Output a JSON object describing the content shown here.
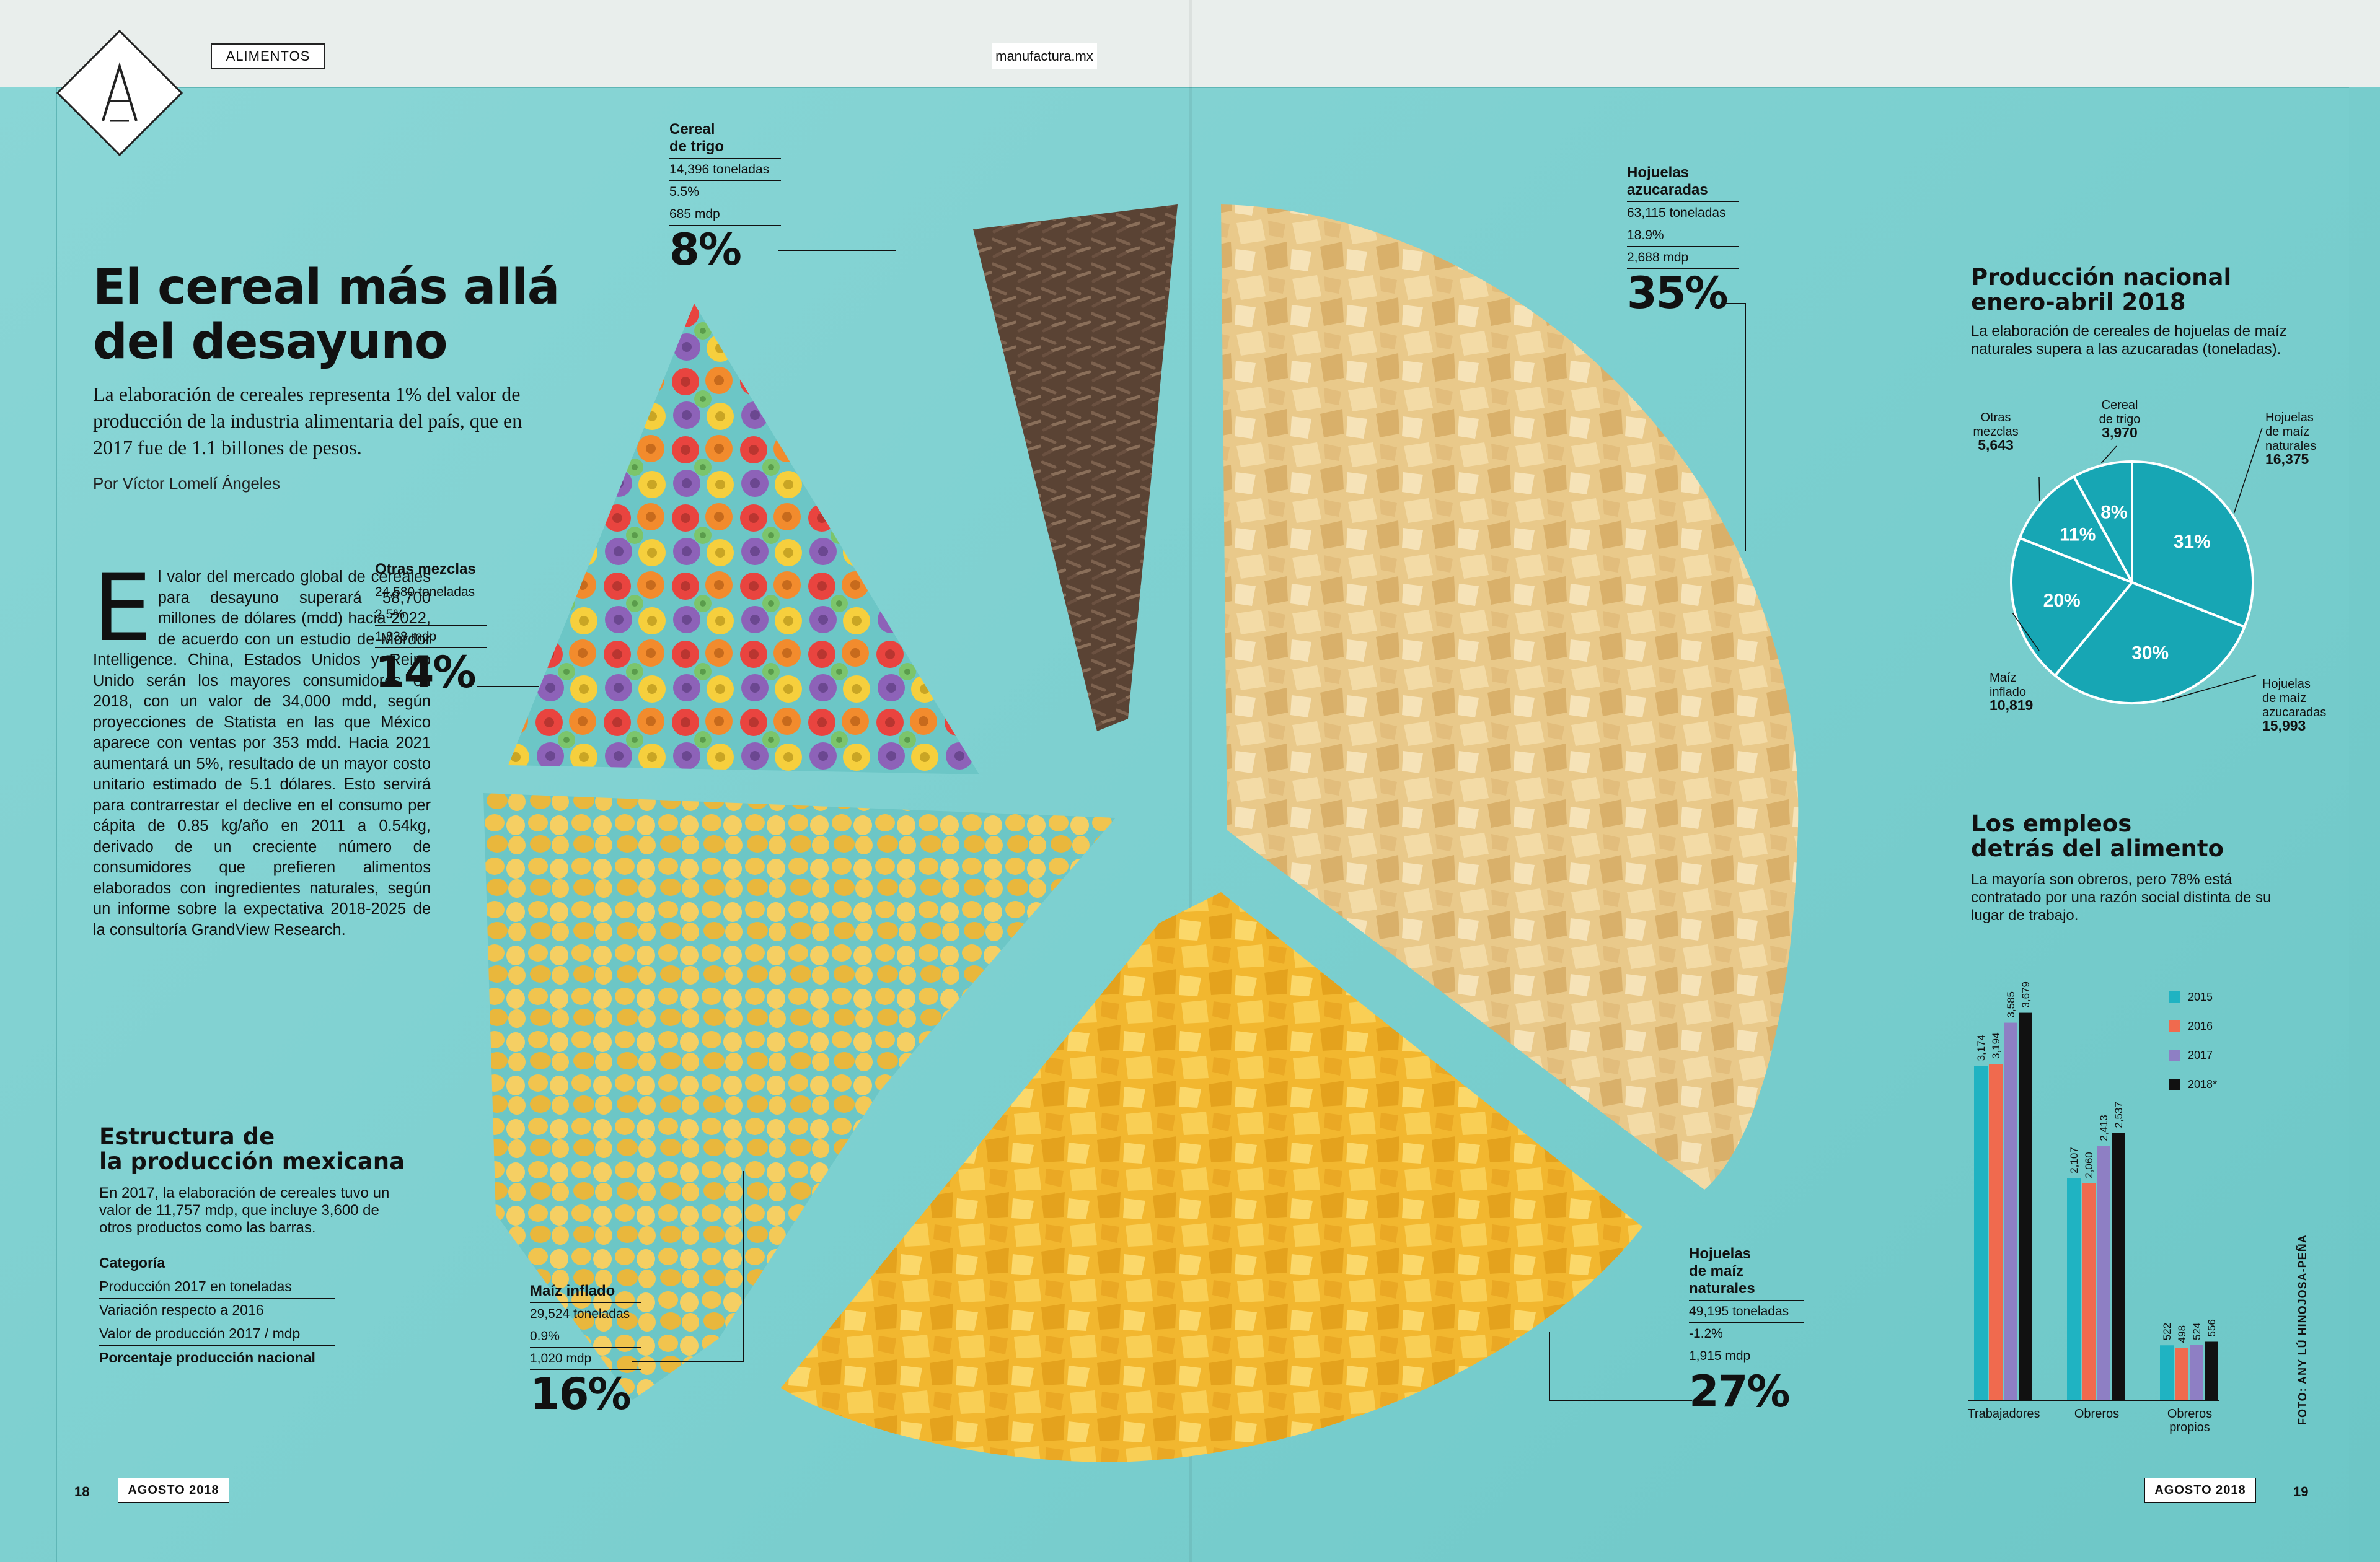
{
  "header": {
    "section": "ALIMENTOS",
    "site": "manufactura.mx"
  },
  "article": {
    "title_line1": "El cereal más allá",
    "title_line2": "del desayuno",
    "deck": "La elaboración de cereales representa 1% del valor de producción de la industria alimentaria del país, que en 2017 fue de 1.1 billones de pesos.",
    "byline": "Por Víctor Lomelí Ángeles",
    "dropcap": "E",
    "body": "l valor del mercado global de cereales para desayuno superará 58,700 millones de dólares (mdd) hacia 2022, de acuerdo con un estudio de Mordor Intelligence. China, Estados Unidos y Reino Unido serán los mayores consumidores en 2018, con un valor de 34,000 mdd, según proyecciones de Statista en las que México aparece con ventas por 353 mdd. Hacia 2021 aumentará un 5%, resultado de un mayor costo unitario estimado de 5.1 dólares. Esto servirá para contrarrestar el declive en el consumo per cápita de 0.85 kg/año en 2011 a 0.54kg, derivado de un creciente número de consumidores que prefieren alimentos elaborados con ingredientes naturales, según un informe sobre la expectativa 2018-2025 de la consultoría GrandView Research."
  },
  "structure": {
    "title_line1": "Estructura de",
    "title_line2": "la producción mexicana",
    "deck": "En 2017, la elaboración de cereales tuvo un valor de 11,757 mdp, que incluye 3,600 de otros productos como las barras.",
    "legend_heading": "Categoría",
    "legend_rows": [
      "Producción 2017 en toneladas",
      "Variación respecto a 2016",
      "Valor de producción 2017 / mdp",
      "Porcentaje producción nacional"
    ]
  },
  "callouts": {
    "trigo": {
      "title1": "Cereal",
      "title2": "de trigo",
      "tons": "14,396 toneladas",
      "var": "5.5%",
      "value": "685 mdp",
      "pct": "8%"
    },
    "azucaradas": {
      "title1": "Hojuelas",
      "title2": "azucaradas",
      "tons": "63,115 toneladas",
      "var": "18.9%",
      "value": "2,688 mdp",
      "pct": "35%"
    },
    "mezclas": {
      "title1": "Otras mezclas",
      "tons": "24,580 toneladas",
      "var": "2.5%",
      "value": "1,838 mdp",
      "pct": "14%"
    },
    "inflado": {
      "title1": "Maíz inflado",
      "tons": "29,524 toneladas",
      "var": "0.9%",
      "value": "1,020 mdp",
      "pct": "16%"
    },
    "naturales": {
      "title1": "Hojuelas",
      "title2": "de maíz",
      "title3": "naturales",
      "tons": "49,195 toneladas",
      "var": "-1.2%",
      "value": "1,915 mdp",
      "pct": "27%"
    }
  },
  "production": {
    "title_line1": "Producción nacional",
    "title_line2": "enero-abril 2018",
    "deck": "La elaboración de cereales de hojuelas de maíz naturales supera a las azucaradas (toneladas).",
    "color": "#17a6b4",
    "chart_data": {
      "type": "pie",
      "slices": [
        {
          "name": "Hojuelas de maíz naturales",
          "pct": 31,
          "value": 16375,
          "label": "31%",
          "annot": [
            "Hojuelas",
            "de maíz",
            "naturales",
            "16,375"
          ]
        },
        {
          "name": "Hojuelas de maíz azucaradas",
          "pct": 30,
          "value": 15993,
          "label": "30%",
          "annot": [
            "Hojuelas",
            "de maíz",
            "azucaradas",
            "15,993"
          ]
        },
        {
          "name": "Maíz inflado",
          "pct": 20,
          "value": 10819,
          "label": "20%",
          "annot": [
            "Maíz",
            "inflado",
            "10,819"
          ]
        },
        {
          "name": "Otras mezclas",
          "pct": 11,
          "value": 5643,
          "label": "11%",
          "annot": [
            "Otras",
            "mezclas",
            "5,643"
          ]
        },
        {
          "name": "Cereal de trigo",
          "pct": 8,
          "value": 3970,
          "label": "8%",
          "annot": [
            "Cereal",
            "de trigo",
            "3,970"
          ]
        }
      ]
    }
  },
  "employment": {
    "title_line1": "Los empleos",
    "title_line2": "detrás del alimento",
    "deck": "La mayoría son obreros, pero 78% está contratado por una razón social distinta de su lugar de trabajo.",
    "chart_data": {
      "type": "bar",
      "categories": [
        "Trabajadores",
        "Obreros",
        "Obreros propios"
      ],
      "category_lines": [
        [
          "Trabajadores"
        ],
        [
          "Obreros"
        ],
        [
          "Obreros",
          "propios"
        ]
      ],
      "series": [
        {
          "name": "2015",
          "color": "#1fb3c2",
          "values": [
            3174,
            2107,
            522
          ],
          "labels": [
            "3,174",
            "2,107",
            "522"
          ]
        },
        {
          "name": "2016",
          "color": "#f06a4e",
          "values": [
            3194,
            2060,
            498
          ],
          "labels": [
            "3,194",
            "2,060",
            "498"
          ]
        },
        {
          "name": "2017",
          "color": "#8e7fc4",
          "values": [
            3585,
            2413,
            524
          ],
          "labels": [
            "3,585",
            "2,413",
            "524"
          ]
        },
        {
          "name": "2018*",
          "color": "#111111",
          "values": [
            3679,
            2537,
            556
          ],
          "labels": [
            "3,679",
            "2,537",
            "556"
          ]
        }
      ],
      "ylim": [
        0,
        4000
      ],
      "legend": "top-right"
    }
  },
  "footer": {
    "left_page": "18",
    "left_date": "AGOSTO 2018",
    "right_date": "AGOSTO 2018",
    "right_page": "19",
    "credit": "FOTO: ANY LÚ HINOJOSA-PEÑA"
  },
  "colors": {
    "background": "#7fcfcf",
    "accent": "#17a6b4"
  }
}
